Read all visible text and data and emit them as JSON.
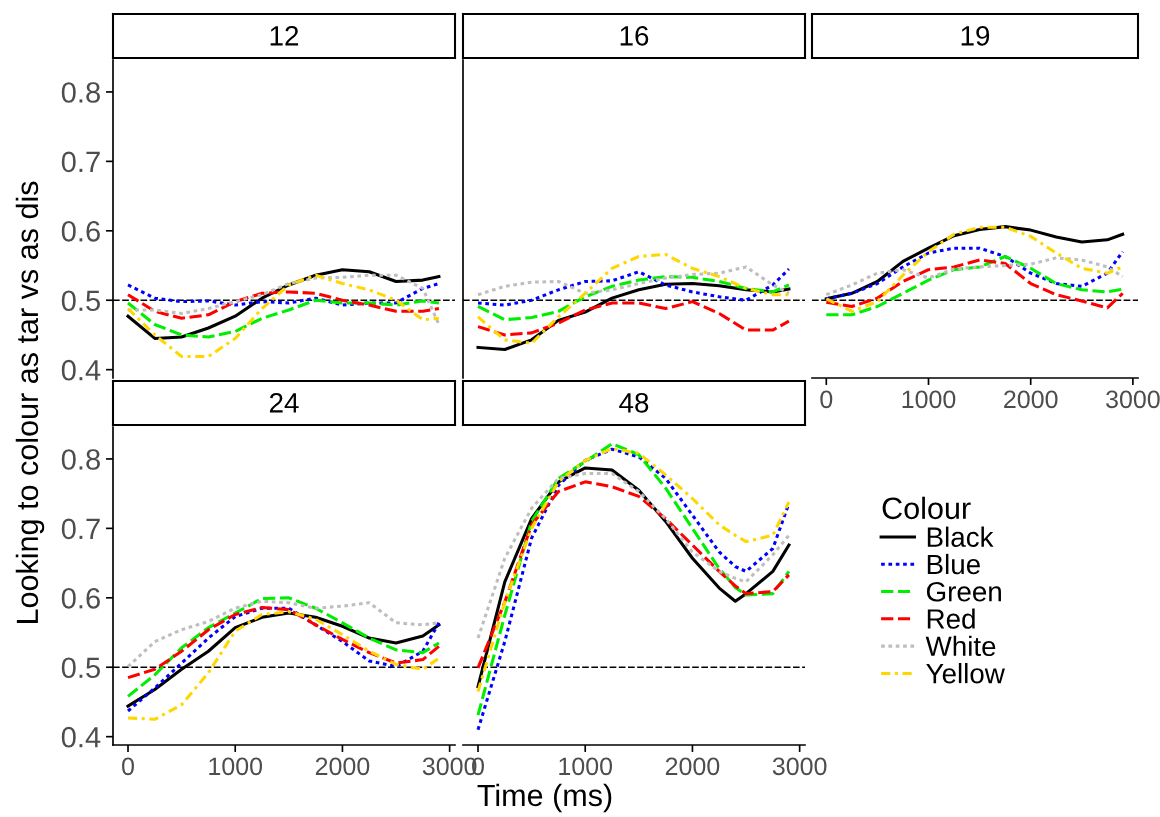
{
  "chart_data": [
    {
      "type": "line",
      "title": "12",
      "ylabel": "Looking to colour as tar vs as dis",
      "legend": "right",
      "legend_title": "Colour",
      "x": [
        0,
        250,
        500,
        750,
        1000,
        1250,
        1500,
        1750,
        2000,
        2250,
        2500,
        2750,
        2900
      ],
      "xlim": [
        -140,
        3050
      ],
      "xticks": [
        0,
        1000,
        2000,
        3000
      ],
      "ylim": [
        0.388,
        0.846
      ],
      "yticks": [
        0.4,
        0.5,
        0.6,
        0.7,
        0.8
      ],
      "tick_labels": "y",
      "grid": false,
      "ref_lines": [
        {
          "axis": "y",
          "value": 0.5,
          "color": "#000000",
          "line_style": "dashed"
        }
      ],
      "series": [
        {
          "name": "Black",
          "color": "#000000",
          "line_style": "solid",
          "values": [
            0.477,
            0.445,
            0.447,
            0.46,
            0.477,
            0.503,
            0.522,
            0.536,
            0.544,
            0.541,
            0.527,
            0.529,
            0.534
          ]
        },
        {
          "name": "Blue",
          "color": "#0000ff",
          "line_style": "dotted",
          "values": [
            0.522,
            0.503,
            0.498,
            0.499,
            0.493,
            0.498,
            0.496,
            0.503,
            0.493,
            0.496,
            0.496,
            0.517,
            0.524
          ]
        },
        {
          "name": "Green",
          "color": "#00ee00",
          "line_style": "dashed",
          "values": [
            0.496,
            0.465,
            0.45,
            0.447,
            0.455,
            0.474,
            0.486,
            0.5,
            0.496,
            0.496,
            0.493,
            0.499,
            0.496
          ]
        },
        {
          "name": "Red",
          "color": "#ff0000",
          "line_style": "dashed",
          "values": [
            0.508,
            0.484,
            0.474,
            0.479,
            0.498,
            0.51,
            0.512,
            0.51,
            0.5,
            0.493,
            0.484,
            0.484,
            0.488
          ]
        },
        {
          "name": "White",
          "color": "#bebebe",
          "line_style": "dotted",
          "values": [
            0.486,
            0.486,
            0.481,
            0.488,
            0.498,
            0.508,
            0.524,
            0.532,
            0.533,
            0.536,
            0.536,
            0.517,
            0.465
          ]
        },
        {
          "name": "Yellow",
          "color": "#ffd700",
          "line_style": "dashdot",
          "values": [
            0.488,
            0.45,
            0.419,
            0.419,
            0.445,
            0.488,
            0.522,
            0.536,
            0.524,
            0.515,
            0.5,
            0.472,
            0.474
          ]
        }
      ]
    },
    {
      "type": "line",
      "title": "16",
      "x": [
        0,
        250,
        500,
        750,
        1000,
        1250,
        1500,
        1750,
        2000,
        2250,
        2500,
        2750,
        2900
      ],
      "xlim": [
        -140,
        3050
      ],
      "xticks": [
        0,
        1000,
        2000,
        3000
      ],
      "ylim": [
        0.388,
        0.846
      ],
      "yticks": [
        0.4,
        0.5,
        0.6,
        0.7,
        0.8
      ],
      "tick_labels": false,
      "grid": false,
      "ref_lines": [
        {
          "axis": "y",
          "value": 0.5,
          "color": "#000000",
          "line_style": "dashed"
        }
      ],
      "series": [
        {
          "color": "#000000",
          "line_style": "solid",
          "values": [
            0.432,
            0.429,
            0.443,
            0.471,
            0.483,
            0.503,
            0.515,
            0.523,
            0.524,
            0.521,
            0.515,
            0.512,
            0.516
          ]
        },
        {
          "color": "#0000ff",
          "line_style": "dotted",
          "values": [
            0.496,
            0.493,
            0.5,
            0.515,
            0.527,
            0.528,
            0.541,
            0.522,
            0.512,
            0.505,
            0.5,
            0.522,
            0.545
          ]
        },
        {
          "color": "#00ee00",
          "line_style": "dashed",
          "values": [
            0.491,
            0.472,
            0.475,
            0.484,
            0.505,
            0.52,
            0.529,
            0.534,
            0.533,
            0.527,
            0.517,
            0.512,
            0.522
          ]
        },
        {
          "color": "#ff0000",
          "line_style": "dashed",
          "values": [
            0.462,
            0.45,
            0.453,
            0.467,
            0.486,
            0.496,
            0.496,
            0.488,
            0.498,
            0.481,
            0.457,
            0.457,
            0.47
          ]
        },
        {
          "color": "#bebebe",
          "line_style": "dotted",
          "values": [
            0.508,
            0.52,
            0.526,
            0.527,
            0.51,
            0.515,
            0.524,
            0.532,
            0.537,
            0.539,
            0.548,
            0.522,
            0.51
          ]
        },
        {
          "color": "#ffd700",
          "line_style": "dashdot",
          "values": [
            0.476,
            0.443,
            0.438,
            0.476,
            0.51,
            0.546,
            0.563,
            0.566,
            0.546,
            0.534,
            0.517,
            0.508,
            0.508
          ]
        }
      ]
    },
    {
      "type": "line",
      "title": "19",
      "x": [
        0,
        250,
        500,
        750,
        1000,
        1250,
        1500,
        1750,
        2000,
        2250,
        2500,
        2750,
        2900
      ],
      "xlim": [
        -140,
        3050
      ],
      "xticks": [
        0,
        1000,
        2000,
        3000
      ],
      "ylim": [
        0.388,
        0.846
      ],
      "yticks": [
        0.4,
        0.5,
        0.6,
        0.7,
        0.8
      ],
      "tick_labels": "x",
      "grid": false,
      "ref_lines": [
        {
          "axis": "y",
          "value": 0.5,
          "color": "#000000",
          "line_style": "dashed"
        }
      ],
      "series": [
        {
          "color": "#000000",
          "line_style": "solid",
          "values": [
            0.502,
            0.51,
            0.527,
            0.556,
            0.575,
            0.593,
            0.602,
            0.606,
            0.601,
            0.591,
            0.584,
            0.587,
            0.595
          ]
        },
        {
          "color": "#0000ff",
          "line_style": "dotted",
          "values": [
            0.502,
            0.51,
            0.524,
            0.548,
            0.568,
            0.575,
            0.575,
            0.563,
            0.539,
            0.524,
            0.52,
            0.539,
            0.57
          ]
        },
        {
          "color": "#00ee00",
          "line_style": "dashed",
          "values": [
            0.479,
            0.479,
            0.491,
            0.51,
            0.529,
            0.544,
            0.548,
            0.563,
            0.546,
            0.524,
            0.515,
            0.512,
            0.516
          ]
        },
        {
          "color": "#ff0000",
          "line_style": "dashed",
          "values": [
            0.497,
            0.491,
            0.503,
            0.527,
            0.544,
            0.548,
            0.558,
            0.553,
            0.524,
            0.508,
            0.499,
            0.489,
            0.51
          ]
        },
        {
          "color": "#bebebe",
          "line_style": "dotted",
          "values": [
            0.508,
            0.522,
            0.539,
            0.544,
            0.532,
            0.545,
            0.548,
            0.55,
            0.552,
            0.561,
            0.558,
            0.548,
            0.534
          ]
        },
        {
          "color": "#ffd700",
          "line_style": "dashdot",
          "values": [
            0.502,
            0.484,
            0.498,
            0.536,
            0.57,
            0.595,
            0.605,
            0.605,
            0.592,
            0.568,
            0.546,
            0.539,
            0.548
          ]
        }
      ]
    },
    {
      "type": "line",
      "title": "24",
      "xlabel": "Time (ms)",
      "x": [
        0,
        250,
        500,
        750,
        1000,
        1250,
        1500,
        1750,
        2000,
        2250,
        2500,
        2750,
        2900
      ],
      "xlim": [
        -140,
        3050
      ],
      "xticks": [
        0,
        1000,
        2000,
        3000
      ],
      "ylim": [
        0.388,
        0.846
      ],
      "yticks": [
        0.4,
        0.5,
        0.6,
        0.7,
        0.8
      ],
      "grid": false,
      "ref_lines": [
        {
          "axis": "y",
          "value": 0.5,
          "color": "#000000",
          "line_style": "dashed"
        }
      ],
      "series": [
        {
          "color": "#000000",
          "line_style": "solid",
          "values": [
            0.444,
            0.468,
            0.497,
            0.523,
            0.557,
            0.572,
            0.578,
            0.572,
            0.559,
            0.542,
            0.535,
            0.545,
            0.561
          ]
        },
        {
          "color": "#0000ff",
          "line_style": "dotted",
          "values": [
            0.437,
            0.47,
            0.506,
            0.542,
            0.573,
            0.585,
            0.585,
            0.561,
            0.537,
            0.509,
            0.501,
            0.523,
            0.564
          ]
        },
        {
          "color": "#00ee00",
          "line_style": "dashed",
          "values": [
            0.458,
            0.489,
            0.528,
            0.557,
            0.578,
            0.599,
            0.6,
            0.585,
            0.564,
            0.542,
            0.525,
            0.521,
            0.535
          ]
        },
        {
          "color": "#ff0000",
          "line_style": "dashed",
          "values": [
            0.485,
            0.497,
            0.523,
            0.554,
            0.576,
            0.586,
            0.583,
            0.561,
            0.54,
            0.521,
            0.506,
            0.511,
            0.53
          ]
        },
        {
          "color": "#bebebe",
          "line_style": "dotted",
          "values": [
            0.501,
            0.537,
            0.554,
            0.566,
            0.585,
            0.595,
            0.593,
            0.585,
            0.588,
            0.593,
            0.564,
            0.561,
            0.564
          ]
        },
        {
          "color": "#ffd700",
          "line_style": "dashdot",
          "values": [
            0.427,
            0.425,
            0.446,
            0.492,
            0.552,
            0.576,
            0.58,
            0.569,
            0.547,
            0.523,
            0.504,
            0.497,
            0.513
          ]
        }
      ]
    },
    {
      "type": "line",
      "title": "48",
      "x": [
        0,
        250,
        500,
        750,
        1000,
        1250,
        1500,
        1750,
        2000,
        2250,
        2400,
        2500,
        2750,
        2900
      ],
      "xlim": [
        -140,
        3050
      ],
      "xticks": [
        0,
        1000,
        2000,
        3000
      ],
      "ylim": [
        0.388,
        0.846
      ],
      "yticks": [
        0.4,
        0.5,
        0.6,
        0.7,
        0.8
      ],
      "tick_labels": "x",
      "grid": false,
      "ref_lines": [
        {
          "axis": "y",
          "value": 0.5,
          "color": "#000000",
          "line_style": "dashed"
        }
      ],
      "series": [
        {
          "color": "#000000",
          "line_style": "solid",
          "values": [
            0.472,
            0.623,
            0.714,
            0.767,
            0.787,
            0.784,
            0.755,
            0.71,
            0.657,
            0.614,
            0.595,
            0.606,
            0.638,
            0.676
          ]
        },
        {
          "color": "#0000ff",
          "line_style": "dotted",
          "values": [
            0.41,
            0.537,
            0.686,
            0.762,
            0.798,
            0.814,
            0.803,
            0.772,
            0.719,
            0.666,
            0.645,
            0.638,
            0.671,
            0.736
          ]
        },
        {
          "color": "#00ee00",
          "line_style": "dashed",
          "values": [
            0.431,
            0.575,
            0.71,
            0.772,
            0.796,
            0.822,
            0.806,
            0.758,
            0.7,
            0.642,
            0.615,
            0.604,
            0.606,
            0.638
          ]
        },
        {
          "color": "#ff0000",
          "line_style": "dashed",
          "values": [
            0.499,
            0.594,
            0.705,
            0.753,
            0.767,
            0.76,
            0.746,
            0.714,
            0.676,
            0.638,
            0.617,
            0.606,
            0.609,
            0.633
          ]
        },
        {
          "color": "#bebebe",
          "line_style": "dotted",
          "values": [
            0.542,
            0.657,
            0.729,
            0.772,
            0.779,
            0.779,
            0.753,
            0.714,
            0.666,
            0.638,
            0.628,
            0.623,
            0.662,
            0.69
          ]
        },
        {
          "color": "#ffd700",
          "line_style": "dashdot",
          "values": [
            0.465,
            0.594,
            0.7,
            0.767,
            0.798,
            0.815,
            0.808,
            0.777,
            0.743,
            0.705,
            0.69,
            0.681,
            0.69,
            0.738
          ]
        }
      ]
    }
  ]
}
